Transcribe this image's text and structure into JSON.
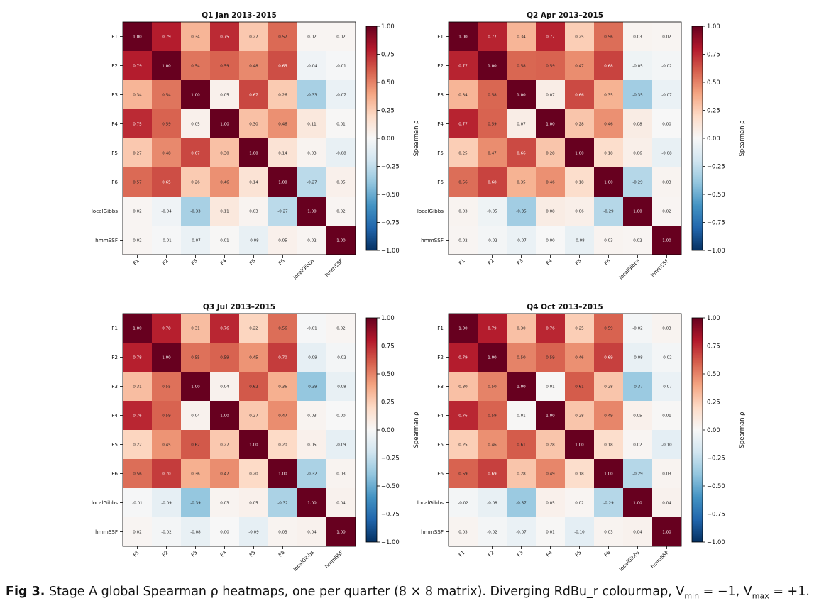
{
  "figure": {
    "caption_label": "Fig 3.",
    "caption_text": " Stage A global Spearman ρ heatmaps, one per quarter (8 × 8 matrix). Diverging RdBu_r colourmap, V",
    "caption_vmin_sub": "min",
    "caption_mid": " = −1, V",
    "caption_vmax_sub": "max",
    "caption_end": " = +1."
  },
  "colors": {
    "cmap_stops": [
      "#053061",
      "#2166ac",
      "#4393c3",
      "#92c5de",
      "#d1e5f0",
      "#f7f7f7",
      "#fddbc7",
      "#f4a582",
      "#d6604d",
      "#b2182b",
      "#67001f"
    ]
  },
  "chart_data": [
    {
      "type": "heatmap",
      "title": "Q1 Jan 2013–2015",
      "labels": [
        "F1",
        "F2",
        "F3",
        "F4",
        "F5",
        "F6",
        "localGibbs",
        "hmmSSF"
      ],
      "vmin": -1,
      "vmax": 1,
      "colorbar_label": "Spearman ρ",
      "colorbar_ticks": [
        "1.00",
        "0.75",
        "0.50",
        "0.25",
        "0.00",
        "−0.25",
        "−0.50",
        "−0.75",
        "−1.00"
      ],
      "matrix": [
        [
          1.0,
          0.79,
          0.34,
          0.75,
          0.27,
          0.57,
          0.02,
          0.02
        ],
        [
          0.79,
          1.0,
          0.54,
          0.59,
          0.48,
          0.65,
          -0.04,
          -0.01
        ],
        [
          0.34,
          0.54,
          1.0,
          0.05,
          0.67,
          0.26,
          -0.33,
          -0.07
        ],
        [
          0.75,
          0.59,
          0.05,
          1.0,
          0.3,
          0.46,
          0.11,
          0.01
        ],
        [
          0.27,
          0.48,
          0.67,
          0.3,
          1.0,
          0.14,
          0.03,
          -0.08
        ],
        [
          0.57,
          0.65,
          0.26,
          0.46,
          0.14,
          1.0,
          -0.27,
          0.05
        ],
        [
          0.02,
          -0.04,
          -0.33,
          0.11,
          0.03,
          -0.27,
          1.0,
          0.02
        ],
        [
          0.02,
          -0.01,
          -0.07,
          0.01,
          -0.08,
          0.05,
          0.02,
          1.0
        ]
      ]
    },
    {
      "type": "heatmap",
      "title": "Q2 Apr 2013–2015",
      "labels": [
        "F1",
        "F2",
        "F3",
        "F4",
        "F5",
        "F6",
        "localGibbs",
        "hmmSSF"
      ],
      "vmin": -1,
      "vmax": 1,
      "colorbar_label": "Spearman ρ",
      "colorbar_ticks": [
        "1.00",
        "0.75",
        "0.50",
        "0.25",
        "0.00",
        "−0.25",
        "−0.50",
        "−0.75",
        "−1.00"
      ],
      "matrix": [
        [
          1.0,
          0.77,
          0.34,
          0.77,
          0.25,
          0.56,
          0.03,
          0.02
        ],
        [
          0.77,
          1.0,
          0.58,
          0.59,
          0.47,
          0.68,
          -0.05,
          -0.02
        ],
        [
          0.34,
          0.58,
          1.0,
          0.07,
          0.66,
          0.35,
          -0.35,
          -0.07
        ],
        [
          0.77,
          0.59,
          0.07,
          1.0,
          0.28,
          0.46,
          0.08,
          -0.0
        ],
        [
          0.25,
          0.47,
          0.66,
          0.28,
          1.0,
          0.18,
          0.06,
          -0.08
        ],
        [
          0.56,
          0.68,
          0.35,
          0.46,
          0.18,
          1.0,
          -0.29,
          0.03
        ],
        [
          0.03,
          -0.05,
          -0.35,
          0.08,
          0.06,
          -0.29,
          1.0,
          0.02
        ],
        [
          0.02,
          -0.02,
          -0.07,
          -0.0,
          -0.08,
          0.03,
          0.02,
          1.0
        ]
      ]
    },
    {
      "type": "heatmap",
      "title": "Q3 Jul 2013–2015",
      "labels": [
        "F1",
        "F2",
        "F3",
        "F4",
        "F5",
        "F6",
        "localGibbs",
        "hmmSSF"
      ],
      "vmin": -1,
      "vmax": 1,
      "colorbar_label": "Spearman ρ",
      "colorbar_ticks": [
        "1.00",
        "0.75",
        "0.50",
        "0.25",
        "0.00",
        "−0.25",
        "−0.50",
        "−0.75",
        "−1.00"
      ],
      "matrix": [
        [
          1.0,
          0.78,
          0.31,
          0.76,
          0.22,
          0.56,
          -0.01,
          0.02
        ],
        [
          0.78,
          1.0,
          0.55,
          0.59,
          0.45,
          0.7,
          -0.09,
          -0.02
        ],
        [
          0.31,
          0.55,
          1.0,
          0.04,
          0.62,
          0.36,
          -0.39,
          -0.08
        ],
        [
          0.76,
          0.59,
          0.04,
          1.0,
          0.27,
          0.47,
          0.03,
          -0.0
        ],
        [
          0.22,
          0.45,
          0.62,
          0.27,
          1.0,
          0.2,
          0.05,
          -0.09
        ],
        [
          0.56,
          0.7,
          0.36,
          0.47,
          0.2,
          1.0,
          -0.32,
          0.03
        ],
        [
          -0.01,
          -0.09,
          -0.39,
          0.03,
          0.05,
          -0.32,
          1.0,
          0.04
        ],
        [
          0.02,
          -0.02,
          -0.08,
          -0.0,
          -0.09,
          0.03,
          0.04,
          1.0
        ]
      ]
    },
    {
      "type": "heatmap",
      "title": "Q4 Oct 2013–2015",
      "labels": [
        "F1",
        "F2",
        "F3",
        "F4",
        "F5",
        "F6",
        "localGibbs",
        "hmmSSF"
      ],
      "vmin": -1,
      "vmax": 1,
      "colorbar_label": "Spearman ρ",
      "colorbar_ticks": [
        "1.00",
        "0.75",
        "0.50",
        "0.25",
        "0.00",
        "−0.25",
        "−0.50",
        "−0.75",
        "−1.00"
      ],
      "matrix": [
        [
          1.0,
          0.79,
          0.3,
          0.76,
          0.25,
          0.59,
          -0.02,
          0.03
        ],
        [
          0.79,
          1.0,
          0.5,
          0.59,
          0.46,
          0.69,
          -0.08,
          -0.02
        ],
        [
          0.3,
          0.5,
          1.0,
          0.01,
          0.61,
          0.28,
          -0.37,
          -0.07
        ],
        [
          0.76,
          0.59,
          0.01,
          1.0,
          0.28,
          0.49,
          0.05,
          0.01
        ],
        [
          0.25,
          0.46,
          0.61,
          0.28,
          1.0,
          0.18,
          0.02,
          -0.1
        ],
        [
          0.59,
          0.69,
          0.28,
          0.49,
          0.18,
          1.0,
          -0.29,
          0.03
        ],
        [
          -0.02,
          -0.08,
          -0.37,
          0.05,
          0.02,
          -0.29,
          1.0,
          0.04
        ],
        [
          0.03,
          -0.02,
          -0.07,
          0.01,
          -0.1,
          0.03,
          0.04,
          1.0
        ]
      ]
    }
  ]
}
